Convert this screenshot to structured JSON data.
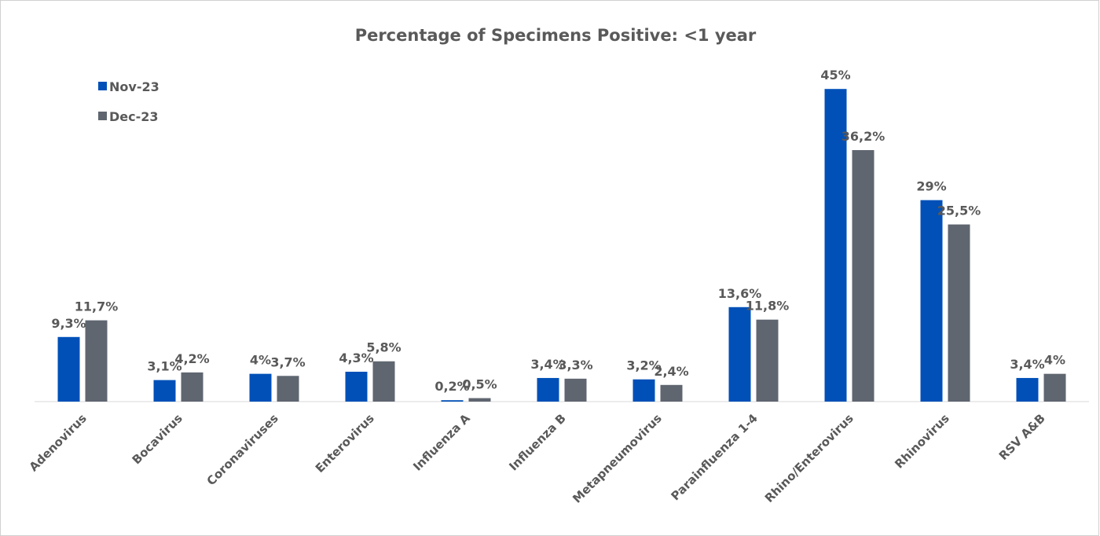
{
  "chart_data": {
    "type": "bar",
    "title": "Percentage of Specimens Positive: <1 year",
    "categories": [
      "Adenovirus",
      "Bocavirus",
      "Coronaviruses",
      "Enterovirus",
      "Influenza A",
      "Influenza B",
      "Metapneumovirus",
      "Parainfluenza 1-4",
      "Rhino/Enterovirus",
      "Rhinovirus",
      "RSV A&B"
    ],
    "series": [
      {
        "name": "Nov-23",
        "color": "#0050b8",
        "values": [
          9.3,
          3.1,
          4,
          4.3,
          0.2,
          3.4,
          3.2,
          13.6,
          45,
          29,
          3.4
        ],
        "value_labels": [
          "9,3%",
          "3,1%",
          "4%",
          "4,3%",
          "0,2%",
          "3,4%",
          "3,2%",
          "13,6%",
          "45%",
          "29%",
          "3,4%"
        ]
      },
      {
        "name": "Dec-23",
        "color": "#5f6670",
        "values": [
          11.7,
          4.2,
          3.7,
          5.8,
          0.5,
          3.3,
          2.4,
          11.8,
          36.2,
          25.5,
          4
        ],
        "value_labels": [
          "11,7%",
          "4,2%",
          "3,7%",
          "5,8%",
          "0,5%",
          "3,3%",
          "2,4%",
          "11,8%",
          "36,2%",
          "25,5%",
          "4%"
        ]
      }
    ],
    "ylim": [
      0,
      50
    ],
    "legend": "top-left"
  }
}
